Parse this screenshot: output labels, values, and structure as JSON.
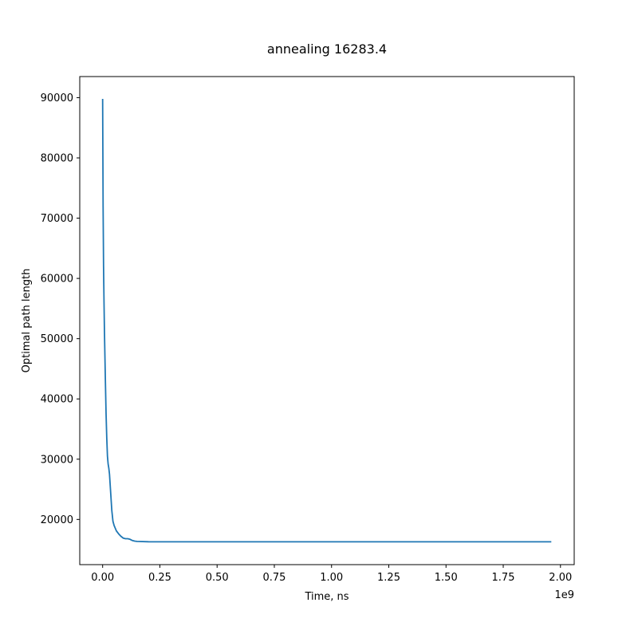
{
  "chart_data": {
    "type": "line",
    "title": "annealing 16283.4",
    "xlabel": "Time, ns",
    "ylabel": "Optimal path length",
    "x_offset_label": "1e9",
    "xlim": [
      -0.1,
      2.06
    ],
    "ylim": [
      12500,
      93500
    ],
    "x_ticks": [
      0.0,
      0.25,
      0.5,
      0.75,
      1.0,
      1.25,
      1.5,
      1.75,
      2.0
    ],
    "x_tick_labels": [
      "0.00",
      "0.25",
      "0.50",
      "0.75",
      "1.00",
      "1.25",
      "1.50",
      "1.75",
      "2.00"
    ],
    "y_ticks": [
      20000,
      30000,
      40000,
      50000,
      60000,
      70000,
      80000,
      90000
    ],
    "y_tick_labels": [
      "20000",
      "30000",
      "40000",
      "50000",
      "60000",
      "70000",
      "80000",
      "90000"
    ],
    "grid": false,
    "series": [
      {
        "color": "#1f77b4",
        "x": [
          0.0,
          0.001,
          0.002,
          0.004,
          0.006,
          0.008,
          0.01,
          0.012,
          0.015,
          0.018,
          0.021,
          0.024,
          0.027,
          0.03,
          0.035,
          0.04,
          0.045,
          0.05,
          0.06,
          0.07,
          0.08,
          0.09,
          0.1,
          0.11,
          0.12,
          0.13,
          0.14,
          0.15,
          0.2,
          0.3,
          0.5,
          1.0,
          1.5,
          1.96
        ],
        "y": [
          89800,
          81000,
          72000,
          62000,
          56000,
          51000,
          47000,
          43000,
          37500,
          33500,
          30500,
          29200,
          28500,
          27500,
          24500,
          21500,
          19700,
          19000,
          18100,
          17600,
          17200,
          16900,
          16800,
          16800,
          16700,
          16500,
          16400,
          16350,
          16300,
          16290,
          16285,
          16284,
          16283.4,
          16283.4
        ]
      }
    ]
  }
}
